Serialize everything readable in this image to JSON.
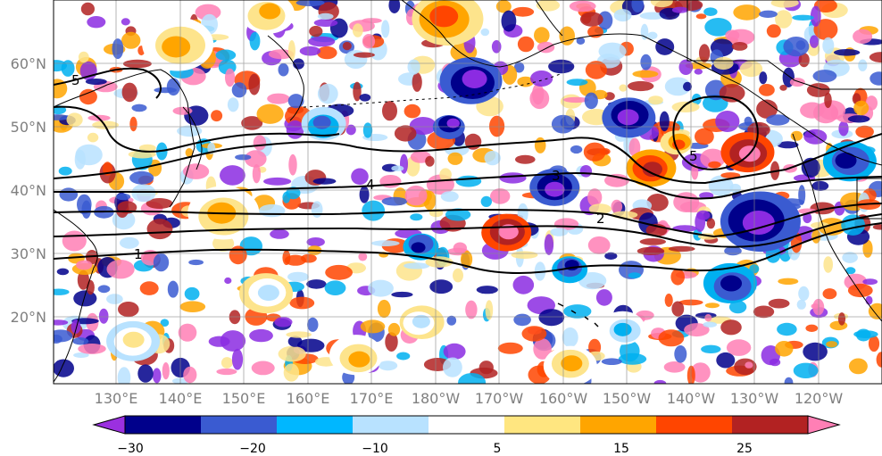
{
  "map": {
    "lat_labels": [
      "60°N",
      "50°N",
      "40°N",
      "30°N",
      "20°N"
    ],
    "lon_labels": [
      "130°E",
      "140°E",
      "150°E",
      "160°E",
      "170°E",
      "180°W",
      "170°W",
      "160°W",
      "150°W",
      "140°W",
      "130°W",
      "120°W"
    ],
    "contour_labels": [
      "5",
      "4",
      "3",
      "2",
      "1",
      "5"
    ],
    "shading_palette": [
      "#8b2be2",
      "#00008b",
      "#3a5bd1",
      "#00b0f0",
      "#b8e2ff",
      "#ffffff",
      "#fde48c",
      "#ffa500",
      "#ff4500",
      "#b22222",
      "#ff7fb5"
    ]
  },
  "colorbar": {
    "tick_labels": [
      "−30",
      "−20",
      "−10",
      "5",
      "15",
      "25"
    ],
    "colors": [
      "#9b30e0",
      "#00008b",
      "#3a5bd1",
      "#00b7ff",
      "#b8e2ff",
      "#ffffff",
      "#ffe680",
      "#ffa500",
      "#ff4500",
      "#b22222",
      "#ff7fb5"
    ]
  }
}
